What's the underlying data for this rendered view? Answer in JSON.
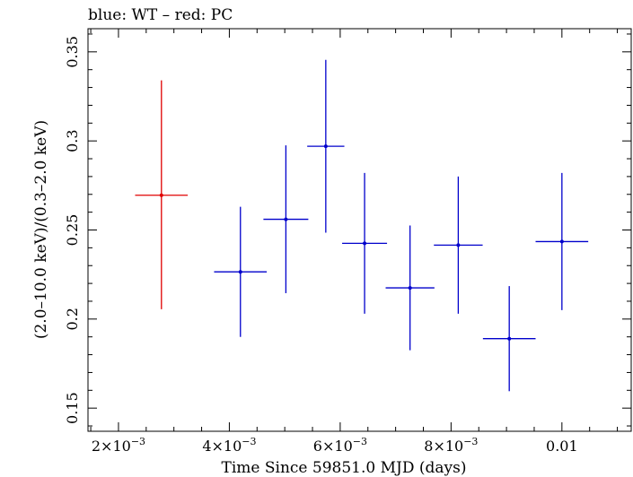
{
  "chart_data": {
    "type": "scatter",
    "title": "blue: WT – red: PC",
    "xlabel": "Time Since 59851.0 MJD (days)",
    "ylabel": "(2.0–10.0 keV)/(0.3–2.0 keV)",
    "xlim": [
      0.00145,
      0.01125
    ],
    "ylim": [
      0.137,
      0.363
    ],
    "x_ticks": [
      {
        "value": 0.002,
        "mant": "2×10",
        "exp": "−3"
      },
      {
        "value": 0.004,
        "mant": "4×10",
        "exp": "−3"
      },
      {
        "value": 0.006,
        "mant": "6×10",
        "exp": "−3"
      },
      {
        "value": 0.008,
        "mant": "8×10",
        "exp": "−3"
      },
      {
        "value": 0.01,
        "mant": "0.01",
        "exp": ""
      }
    ],
    "y_ticks": [
      {
        "value": 0.15,
        "label": "0.15"
      },
      {
        "value": 0.2,
        "label": "0.2"
      },
      {
        "value": 0.25,
        "label": "0.25"
      },
      {
        "value": 0.3,
        "label": "0.3"
      },
      {
        "value": 0.35,
        "label": "0.35"
      }
    ],
    "grid": false,
    "series": [
      {
        "name": "PC",
        "color": "#e00000",
        "points": [
          {
            "x": 0.002775,
            "xerr": 0.000475,
            "y": 0.2695,
            "yerr_lo": 0.064,
            "yerr_hi": 0.0645
          }
        ]
      },
      {
        "name": "WT",
        "color": "#0000cc",
        "points": [
          {
            "x": 0.0042,
            "xerr": 0.000475,
            "y": 0.2265,
            "yerr_lo": 0.0365,
            "yerr_hi": 0.0365
          },
          {
            "x": 0.00502,
            "xerr": 0.000405,
            "y": 0.256,
            "yerr_lo": 0.0415,
            "yerr_hi": 0.0415
          },
          {
            "x": 0.00574,
            "xerr": 0.000335,
            "y": 0.297,
            "yerr_lo": 0.0485,
            "yerr_hi": 0.0485
          },
          {
            "x": 0.00644,
            "xerr": 0.000405,
            "y": 0.2425,
            "yerr_lo": 0.0395,
            "yerr_hi": 0.0395
          },
          {
            "x": 0.00726,
            "xerr": 0.00044,
            "y": 0.2175,
            "yerr_lo": 0.035,
            "yerr_hi": 0.035
          },
          {
            "x": 0.00813,
            "xerr": 0.00044,
            "y": 0.2415,
            "yerr_lo": 0.0385,
            "yerr_hi": 0.0385
          },
          {
            "x": 0.00905,
            "xerr": 0.000475,
            "y": 0.189,
            "yerr_lo": 0.0295,
            "yerr_hi": 0.0295
          },
          {
            "x": 0.01,
            "xerr": 0.000475,
            "y": 0.2435,
            "yerr_lo": 0.0385,
            "yerr_hi": 0.0385
          }
        ]
      }
    ]
  }
}
